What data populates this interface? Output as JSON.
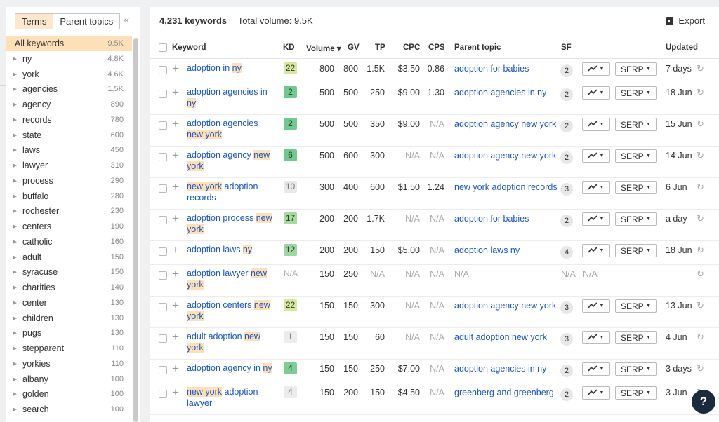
{
  "sidebar": {
    "tabs": [
      {
        "label": "Terms",
        "active": true
      },
      {
        "label": "Parent topics",
        "active": false
      }
    ],
    "collapse_icon": "double-chevron-left-icon",
    "all": {
      "label": "All keywords",
      "count": "9.5K"
    },
    "items": [
      {
        "label": "ny",
        "count": "4.8K"
      },
      {
        "label": "york",
        "count": "4.6K"
      },
      {
        "label": "agencies",
        "count": "1.5K"
      },
      {
        "label": "agency",
        "count": "890"
      },
      {
        "label": "records",
        "count": "780"
      },
      {
        "label": "state",
        "count": "600"
      },
      {
        "label": "laws",
        "count": "450"
      },
      {
        "label": "lawyer",
        "count": "310"
      },
      {
        "label": "process",
        "count": "290"
      },
      {
        "label": "buffalo",
        "count": "280"
      },
      {
        "label": "rochester",
        "count": "230"
      },
      {
        "label": "centers",
        "count": "190"
      },
      {
        "label": "catholic",
        "count": "160"
      },
      {
        "label": "adult",
        "count": "150"
      },
      {
        "label": "syracuse",
        "count": "150"
      },
      {
        "label": "charities",
        "count": "140"
      },
      {
        "label": "center",
        "count": "130"
      },
      {
        "label": "children",
        "count": "130"
      },
      {
        "label": "pugs",
        "count": "130"
      },
      {
        "label": "stepparent",
        "count": "110"
      },
      {
        "label": "yorkies",
        "count": "110"
      },
      {
        "label": "albany",
        "count": "100"
      },
      {
        "label": "golden",
        "count": "100"
      },
      {
        "label": "search",
        "count": "100"
      }
    ]
  },
  "header": {
    "keyword_count": "4,231 keywords",
    "total_volume": "Total volume: 9.5K",
    "export_label": "Export"
  },
  "columns": {
    "keyword": "Keyword",
    "kd": "KD",
    "volume": "Volume ▾",
    "gv": "GV",
    "tp": "TP",
    "cpc": "CPC",
    "cps": "CPS",
    "parent": "Parent topic",
    "sf": "SF",
    "updated": "Updated"
  },
  "rows": [
    {
      "kw": [
        [
          "adoption in ",
          false
        ],
        [
          "ny",
          true
        ]
      ],
      "kd": "22",
      "kd_class": "g22",
      "vol": "800",
      "gv": "800",
      "tp": "1.5K",
      "cpc": "$3.50",
      "cps": "0.86",
      "parent": "adoption for babies",
      "sf": "2",
      "serp": "SERP",
      "updated": "7 days",
      "tall": false
    },
    {
      "kw": [
        [
          "adoption agencies in ",
          false
        ],
        [
          "ny",
          true
        ]
      ],
      "kd": "2",
      "kd_class": "g2",
      "vol": "500",
      "gv": "500",
      "tp": "250",
      "cpc": "$9.00",
      "cps": "1.30",
      "parent": "adoption agencies in ny",
      "sf": "2",
      "serp": "SERP",
      "updated": "18 Jun",
      "tall": true
    },
    {
      "kw": [
        [
          "adoption agencies ",
          false
        ],
        [
          "new york",
          true
        ]
      ],
      "kd": "2",
      "kd_class": "g2",
      "vol": "500",
      "gv": "500",
      "tp": "350",
      "cpc": "$9.00",
      "cps": "N/A",
      "parent": "adoption agency new york",
      "sf": "2",
      "serp": "SERP",
      "updated": "15 Jun",
      "tall": true
    },
    {
      "kw": [
        [
          "adoption agency ",
          false
        ],
        [
          "new york",
          true
        ]
      ],
      "kd": "6",
      "kd_class": "g2",
      "vol": "500",
      "gv": "600",
      "tp": "300",
      "cpc": "N/A",
      "cps": "N/A",
      "parent": "adoption agency new york",
      "sf": "2",
      "serp": "SERP",
      "updated": "14 Jun",
      "tall": true
    },
    {
      "kw": [
        [
          "new york",
          true
        ],
        [
          " adoption records",
          false
        ]
      ],
      "kd": "10",
      "kd_class": "g10",
      "vol": "300",
      "gv": "400",
      "tp": "600",
      "cpc": "$1.50",
      "cps": "1.24",
      "parent": "new york adoption records",
      "sf": "3",
      "serp": "SERP",
      "updated": "6 Jun",
      "tall": true
    },
    {
      "kw": [
        [
          "adoption process ",
          false
        ],
        [
          "new york",
          true
        ]
      ],
      "kd": "17",
      "kd_class": "g17",
      "vol": "200",
      "gv": "200",
      "tp": "1.7K",
      "cpc": "N/A",
      "cps": "N/A",
      "parent": "adoption for babies",
      "sf": "2",
      "serp": "SERP",
      "updated": "a day",
      "tall": true
    },
    {
      "kw": [
        [
          "adoption laws ",
          false
        ],
        [
          "ny",
          true
        ]
      ],
      "kd": "12",
      "kd_class": "g12",
      "vol": "200",
      "gv": "200",
      "tp": "150",
      "cpc": "$5.00",
      "cps": "N/A",
      "parent": "adoption laws ny",
      "sf": "4",
      "serp": "SERP",
      "updated": "18 Jun",
      "tall": false
    },
    {
      "kw": [
        [
          "adoption lawyer ",
          false
        ],
        [
          "new york",
          true
        ]
      ],
      "kd": "N/A",
      "kd_class": "na",
      "vol": "150",
      "gv": "250",
      "tp": "N/A",
      "cpc": "N/A",
      "cps": "N/A",
      "parent": "N/A",
      "sf": "N/A",
      "serp": "",
      "updated": "",
      "tall": true
    },
    {
      "kw": [
        [
          "adoption centers ",
          false
        ],
        [
          "new york",
          true
        ]
      ],
      "kd": "22",
      "kd_class": "g22",
      "vol": "150",
      "gv": "150",
      "tp": "300",
      "cpc": "N/A",
      "cps": "N/A",
      "parent": "adoption agency new york",
      "sf": "3",
      "serp": "SERP",
      "updated": "13 Jun",
      "tall": true
    },
    {
      "kw": [
        [
          "adult adoption ",
          false
        ],
        [
          "new york",
          true
        ]
      ],
      "kd": "1",
      "kd_class": "g1",
      "vol": "150",
      "gv": "150",
      "tp": "60",
      "cpc": "N/A",
      "cps": "N/A",
      "parent": "adult adoption new york",
      "sf": "3",
      "serp": "SERP",
      "updated": "4 Jun",
      "tall": true
    },
    {
      "kw": [
        [
          "adoption agency in ",
          false
        ],
        [
          "ny",
          true
        ]
      ],
      "kd": "4",
      "kd_class": "g4",
      "vol": "150",
      "gv": "150",
      "tp": "250",
      "cpc": "$7.00",
      "cps": "N/A",
      "parent": "adoption agencies in ny",
      "sf": "2",
      "serp": "SERP",
      "updated": "3 days",
      "tall": false
    },
    {
      "kw": [
        [
          "new york",
          true
        ],
        [
          " adoption lawyer",
          false
        ]
      ],
      "kd": "4",
      "kd_class": "g1",
      "vol": "150",
      "gv": "200",
      "tp": "150",
      "cpc": "$4.50",
      "cps": "N/A",
      "parent": "greenberg and greenberg",
      "sf": "2",
      "serp": "SERP",
      "updated": "3 Jun",
      "tall": true
    }
  ],
  "help_label": "?",
  "colors": {
    "link": "#1a56c6",
    "highlight": "#fde0b8",
    "active_tab": "#fde8cd",
    "help_bg": "#1c2a3d"
  }
}
